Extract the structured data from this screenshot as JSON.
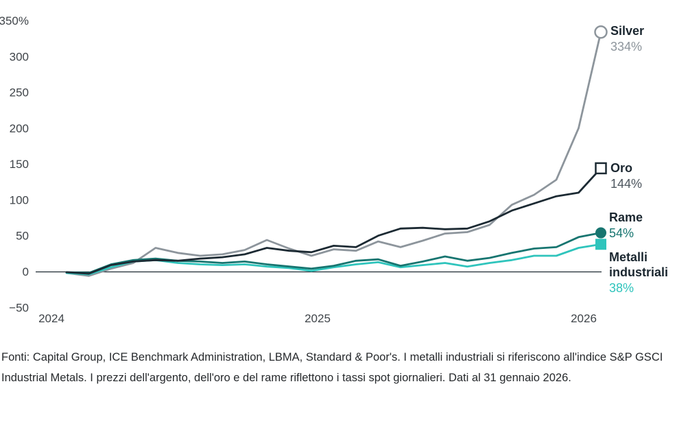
{
  "chart_data": {
    "type": "line",
    "title": "",
    "unit": "%",
    "x_frequency": "monthly",
    "x_range": [
      "Jan 2024",
      "Jan 2026"
    ],
    "x_year_labels": [
      "2024",
      "2025",
      "2026"
    ],
    "ylim": [
      -50,
      350
    ],
    "yticks": [
      350,
      300,
      250,
      200,
      150,
      100,
      50,
      0,
      -50
    ],
    "ytick_labels": [
      "350%",
      "300",
      "250",
      "200",
      "150",
      "100",
      "50",
      "0",
      "−50"
    ],
    "grid": "none (zero baseline only)",
    "legend_position": "right, at line ends",
    "axis_color": "#1b2730",
    "series": [
      {
        "name": "Silver",
        "value_label": "334%",
        "color": "#8d959c",
        "value_color": "#8d959c",
        "marker": "circle-open",
        "values": [
          -2,
          -6,
          4,
          12,
          33,
          26,
          22,
          24,
          30,
          44,
          32,
          22,
          31,
          29,
          42,
          34,
          43,
          53,
          55,
          65,
          93,
          107,
          128,
          200,
          334
        ]
      },
      {
        "name": "Oro",
        "value_label": "144%",
        "color": "#1c2a33",
        "value_color": "#4d565e",
        "marker": "square-open",
        "values": [
          -1,
          -3,
          9,
          14,
          16,
          15,
          18,
          20,
          24,
          33,
          29,
          27,
          36,
          34,
          50,
          60,
          61,
          59,
          60,
          70,
          85,
          95,
          105,
          110,
          144
        ]
      },
      {
        "name": "Rame",
        "value_label": "54%",
        "color": "#177570",
        "value_color": "#177570",
        "marker": "circle-filled",
        "values": [
          -1,
          -2,
          10,
          16,
          18,
          15,
          14,
          12,
          14,
          10,
          7,
          4,
          8,
          15,
          17,
          8,
          14,
          21,
          15,
          19,
          26,
          32,
          34,
          48,
          54
        ]
      },
      {
        "name": "Metalli industriali",
        "value_label": "38%",
        "color": "#2fc4bc",
        "value_color": "#2fc4bc",
        "marker": "square-filled",
        "values": [
          -2,
          -4,
          6,
          14,
          16,
          12,
          10,
          9,
          10,
          7,
          5,
          1,
          6,
          10,
          13,
          6,
          9,
          12,
          7,
          12,
          16,
          22,
          22,
          33,
          38
        ]
      }
    ]
  },
  "footer": {
    "text": "Fonti: Capital Group, ICE Benchmark Administration, LBMA, Standard & Poor's. I metalli industriali si riferiscono all'indice S&P GSCI Industrial Metals. I prezzi dell'argento, dell'oro e del rame riflettono i tassi spot giornalieri. Dati al 31 gennaio 2026."
  }
}
